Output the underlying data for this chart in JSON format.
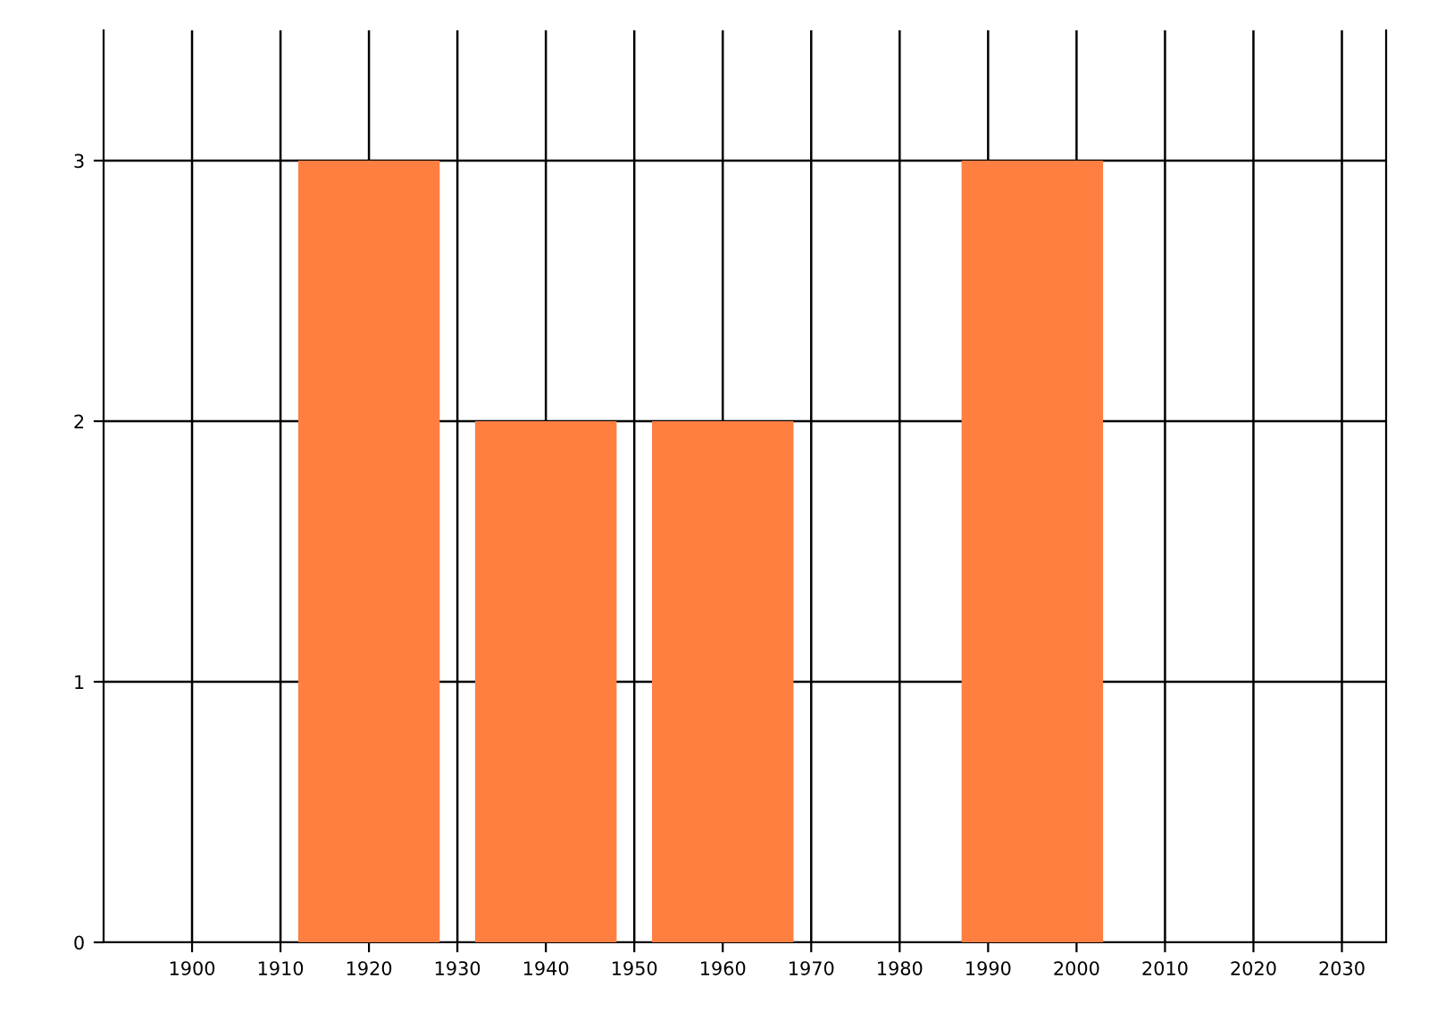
{
  "chart_data": {
    "type": "bar",
    "x": [
      1920,
      1940,
      1960,
      1995
    ],
    "values": [
      3,
      2,
      2,
      3
    ],
    "color": "#ff7f41",
    "xlim": [
      1890,
      2035
    ],
    "xticks": [
      1900,
      1910,
      1920,
      1930,
      1940,
      1950,
      1960,
      1970,
      1980,
      1990,
      2000,
      2010,
      2020,
      2030
    ],
    "ylim": [
      0,
      3.5
    ],
    "yticks": [
      0,
      1,
      2,
      3
    ],
    "grid": true,
    "legend": false
  }
}
